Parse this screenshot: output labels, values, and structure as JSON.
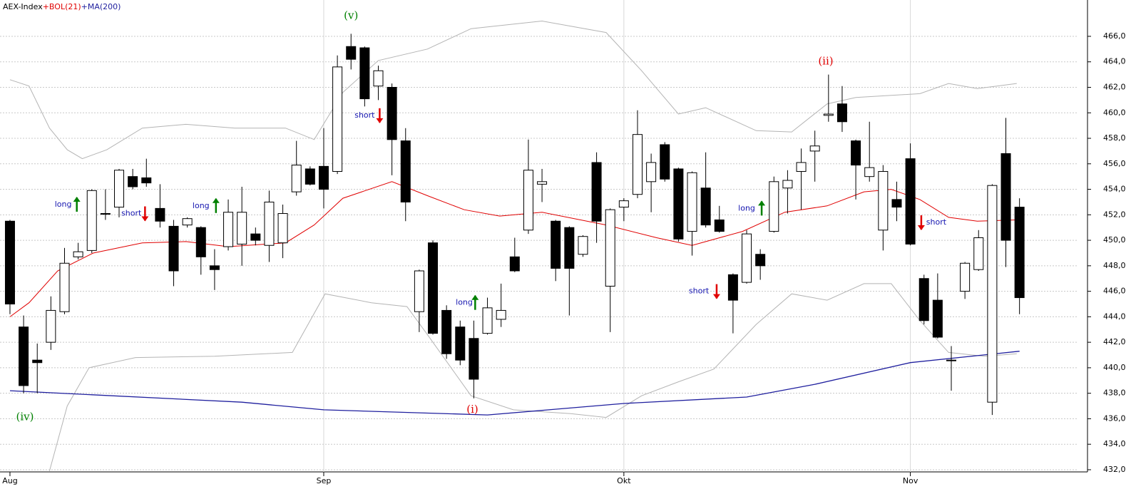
{
  "chart_data": {
    "type": "candlestick",
    "legend": [
      {
        "text": "AEX-Index",
        "color": "#000000"
      },
      {
        "text": "+BOL(21)",
        "color": "#e00000"
      },
      {
        "text": "+MA(200)",
        "color": "#1f1f9e"
      }
    ],
    "categories": [
      "Aug",
      null,
      null,
      null,
      null,
      null,
      null,
      null,
      null,
      null,
      null,
      null,
      null,
      null,
      null,
      null,
      null,
      null,
      null,
      null,
      null,
      null,
      null,
      "Sep",
      null,
      null,
      null,
      null,
      null,
      null,
      null,
      null,
      null,
      null,
      null,
      null,
      null,
      null,
      null,
      null,
      null,
      null,
      null,
      null,
      null,
      "Okt",
      null,
      null,
      null,
      null,
      null,
      null,
      null,
      null,
      null,
      null,
      null,
      null,
      null,
      null,
      null,
      null,
      null,
      null,
      null,
      null,
      "Nov",
      null,
      null,
      null,
      null,
      null,
      null,
      null,
      null
    ],
    "open": [
      451.5,
      443.2,
      440.6,
      442.0,
      444.4,
      448.7,
      449.2,
      452.1,
      452.6,
      455.0,
      454.9,
      452.5,
      451.1,
      451.2,
      451.0,
      448.0,
      449.5,
      449.7,
      450.5,
      449.6,
      449.8,
      453.8,
      455.6,
      455.8,
      455.4,
      465.2,
      465.1,
      462.1,
      462.0,
      457.8,
      444.4,
      449.8,
      444.5,
      443.2,
      442.3,
      442.7,
      443.8,
      448.7,
      450.8,
      454.4,
      451.5,
      451.0,
      448.9,
      456.1,
      446.4,
      452.6,
      453.6,
      454.6,
      457.5,
      455.6,
      450.7,
      454.1,
      451.6,
      447.3,
      446.7,
      448.9,
      450.7,
      454.1,
      455.4,
      457.0,
      459.8,
      460.7,
      457.8,
      455.0,
      450.8,
      453.2,
      456.4,
      447.0,
      445.3,
      440.6,
      446.0,
      447.7,
      437.3,
      456.8,
      452.6
    ],
    "high": [
      451.6,
      444.1,
      441.9,
      445.6,
      449.4,
      449.8,
      454.0,
      454.0,
      455.6,
      455.6,
      456.4,
      454.4,
      451.6,
      451.8,
      451.1,
      449.3,
      453.2,
      454.2,
      451.0,
      453.9,
      452.8,
      457.8,
      455.8,
      458.8,
      464.5,
      466.2,
      465.2,
      463.7,
      462.3,
      458.8,
      447.7,
      450.0,
      444.9,
      443.7,
      443.7,
      445.5,
      446.6,
      450.2,
      457.9,
      455.6,
      451.6,
      451.1,
      450.4,
      456.9,
      452.5,
      453.3,
      460.2,
      456.8,
      457.7,
      455.7,
      455.4,
      456.9,
      452.7,
      447.4,
      450.8,
      449.3,
      455.0,
      455.5,
      457.2,
      458.6,
      463.0,
      462.1,
      457.9,
      459.3,
      455.9,
      454.6,
      457.6,
      447.3,
      447.4,
      441.7,
      448.3,
      450.8,
      454.4,
      459.6,
      453.3
    ],
    "low": [
      444.2,
      438.0,
      438.0,
      441.4,
      444.2,
      448.5,
      449.0,
      451.6,
      451.8,
      454.0,
      454.2,
      451.0,
      446.4,
      451.0,
      447.3,
      446.1,
      449.2,
      448.0,
      449.6,
      448.3,
      448.6,
      453.5,
      454.3,
      452.5,
      455.2,
      463.4,
      460.5,
      461.0,
      455.1,
      451.5,
      442.8,
      442.6,
      440.7,
      440.2,
      437.6,
      442.6,
      443.2,
      447.5,
      450.5,
      453.0,
      446.8,
      444.1,
      448.7,
      449.8,
      442.8,
      451.5,
      453.3,
      452.2,
      454.6,
      449.9,
      448.8,
      451.0,
      450.6,
      442.7,
      446.6,
      446.9,
      450.6,
      452.1,
      452.4,
      454.6,
      459.3,
      458.5,
      453.2,
      454.6,
      449.2,
      451.5,
      449.6,
      443.4,
      442.3,
      438.2,
      445.4,
      447.6,
      436.3,
      447.9,
      444.2
    ],
    "close": [
      445.0,
      438.6,
      440.4,
      444.5,
      448.2,
      449.1,
      453.9,
      452.1,
      455.5,
      454.2,
      454.5,
      451.5,
      447.6,
      451.7,
      448.7,
      447.7,
      452.2,
      452.2,
      450.0,
      453.0,
      452.1,
      455.9,
      454.4,
      454.0,
      463.6,
      464.2,
      461.1,
      463.3,
      457.9,
      453.0,
      447.6,
      442.7,
      441.1,
      440.6,
      439.1,
      444.7,
      444.5,
      447.6,
      455.5,
      454.6,
      447.8,
      447.8,
      450.3,
      451.5,
      452.4,
      453.1,
      458.3,
      456.1,
      454.8,
      450.1,
      455.3,
      451.2,
      450.7,
      445.3,
      450.5,
      448.0,
      454.6,
      454.7,
      456.1,
      457.4,
      459.9,
      459.3,
      455.9,
      455.7,
      455.4,
      452.6,
      449.7,
      443.7,
      442.4,
      440.6,
      448.2,
      450.2,
      454.3,
      450.0,
      445.5
    ],
    "up_color": "#ffffff",
    "down_color": "#000000",
    "lines": [
      {
        "color": "#b4b4b4",
        "x": [
          0,
          1.4,
          2.9,
          4.2,
          5.3,
          7.1,
          9.7,
          12.9,
          16.5,
          20.2,
          22.3,
          24.4,
          27.0,
          30.6,
          33.8,
          39.0,
          43.7,
          46.3,
          49.0,
          51.0,
          54.7,
          57.3,
          59.9,
          62.0,
          66.7,
          68.8,
          70.9,
          73.8
        ],
        "values": [
          462.6,
          462.1,
          458.8,
          457.1,
          456.4,
          457.1,
          458.8,
          459.1,
          458.8,
          458.8,
          457.9,
          461.6,
          464.1,
          465.0,
          466.6,
          467.2,
          466.3,
          463.3,
          459.9,
          460.4,
          458.6,
          458.5,
          460.7,
          461.2,
          461.5,
          462.3,
          461.9,
          462.3
        ]
      },
      {
        "color": "#b4b4b4",
        "x": [
          2.9,
          4.2,
          5.8,
          9.2,
          15.0,
          20.7,
          23.1,
          26.5,
          29.1,
          30.6,
          33.8,
          36.9,
          41.1,
          43.7,
          46.3,
          49.0,
          51.6,
          54.7,
          57.3,
          59.9,
          62.6,
          64.6,
          66.7,
          68.8,
          71.4,
          73.8
        ],
        "values": [
          431.9,
          437.0,
          440.0,
          440.8,
          440.9,
          441.2,
          445.8,
          445.1,
          444.8,
          442.6,
          437.8,
          436.7,
          436.4,
          436.1,
          437.8,
          438.9,
          439.9,
          443.4,
          445.8,
          445.3,
          446.6,
          446.6,
          443.7,
          441.2,
          440.9,
          441.1
        ]
      },
      {
        "color": "#e00000",
        "x": [
          0,
          1.4,
          3.5,
          6.1,
          9.7,
          12.9,
          16.0,
          20.2,
          22.3,
          24.4,
          28.0,
          30.6,
          33.3,
          35.9,
          39.0,
          43.7,
          47.4,
          50.0,
          53.7,
          56.8,
          59.9,
          62.6,
          64.6,
          66.7,
          68.8,
          70.9,
          73.8
        ],
        "values": [
          444.0,
          445.1,
          447.6,
          449.0,
          449.8,
          449.9,
          449.5,
          449.8,
          451.2,
          453.3,
          454.6,
          453.5,
          452.4,
          451.9,
          452.2,
          451.2,
          450.2,
          449.6,
          450.7,
          452.2,
          452.7,
          453.8,
          454.0,
          453.2,
          451.8,
          451.5,
          451.6
        ]
      },
      {
        "color": "#1f1f9e",
        "x": [
          0,
          17,
          23,
          35,
          45,
          54,
          59,
          66,
          74
        ],
        "values": [
          438.2,
          437.3,
          436.7,
          436.3,
          437.2,
          437.7,
          438.7,
          440.4,
          441.3
        ]
      }
    ],
    "annotations": [
      {
        "text": "(v)",
        "x": 25,
        "y": 467.6,
        "color": "#008000"
      },
      {
        "text": "(iv)",
        "x": 1.1,
        "y": 436.1,
        "color": "#008000"
      },
      {
        "text": "(i)",
        "x": 33.9,
        "y": 436.7,
        "color": "#e00000"
      },
      {
        "text": "(ii)",
        "x": 59.8,
        "y": 464.0,
        "color": "#e00000"
      }
    ],
    "signals": [
      {
        "label": "long",
        "x": 3.9,
        "y": 452.8,
        "arrow_x": 4.9,
        "direction": "up"
      },
      {
        "label": "short",
        "x": 8.9,
        "y": 452.1,
        "arrow_x": 9.9,
        "direction": "down"
      },
      {
        "label": "long",
        "x": 14.0,
        "y": 452.7,
        "arrow_x": 15.1,
        "direction": "up"
      },
      {
        "label": "short",
        "x": 26.0,
        "y": 459.8,
        "arrow_x": 27.1,
        "direction": "down"
      },
      {
        "label": "long",
        "x": 33.3,
        "y": 445.1,
        "arrow_x": 34.1,
        "direction": "up"
      },
      {
        "label": "short",
        "x": 50.5,
        "y": 446.0,
        "arrow_x": 51.8,
        "direction": "down"
      },
      {
        "label": "long",
        "x": 54.0,
        "y": 452.5,
        "arrow_x": 55.1,
        "direction": "up"
      },
      {
        "label": "short",
        "x": 67.9,
        "y": 451.4,
        "arrow_x": 66.8,
        "direction": "down"
      }
    ],
    "signal_text_color": "#1515b0",
    "up_arrow_color": "#008000",
    "down_arrow_color": "#e00000",
    "xlim": [
      -0.73,
      78.2
    ],
    "ylim": [
      431.83,
      468.85
    ],
    "yticks": [
      {
        "value": 432,
        "label": "432,0"
      },
      {
        "value": 434,
        "label": "434,0"
      },
      {
        "value": 436,
        "label": "436,0"
      },
      {
        "value": 438,
        "label": "438,0"
      },
      {
        "value": 440,
        "label": "440,0"
      },
      {
        "value": 442,
        "label": "442,0"
      },
      {
        "value": 444,
        "label": "444,0"
      },
      {
        "value": 446,
        "label": "446,0"
      },
      {
        "value": 448,
        "label": "448,0"
      },
      {
        "value": 450,
        "label": "450,0"
      },
      {
        "value": 452,
        "label": "452,0"
      },
      {
        "value": 454,
        "label": "454,0"
      },
      {
        "value": 456,
        "label": "456,0"
      },
      {
        "value": 458,
        "label": "458,0"
      },
      {
        "value": 460,
        "label": "460,0"
      },
      {
        "value": 462,
        "label": "462,0"
      },
      {
        "value": 464,
        "label": "464,0"
      },
      {
        "value": 466,
        "label": "466,0"
      }
    ],
    "grid": true
  }
}
